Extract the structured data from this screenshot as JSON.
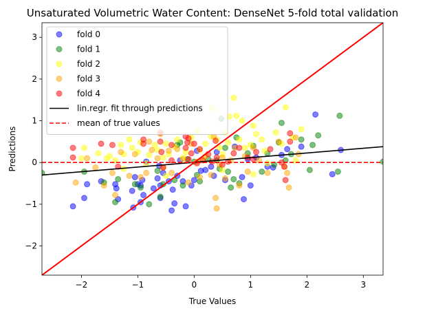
{
  "chart_data": {
    "type": "scatter",
    "title": "Unsaturated Volumetric Water Content: DenseNet 5-fold total validation",
    "xlabel": "True Values",
    "ylabel": "Predictions",
    "xlim": [
      -2.7,
      3.35
    ],
    "ylim": [
      -2.7,
      3.35
    ],
    "xticks": [
      -2,
      -1,
      0,
      1,
      2,
      3
    ],
    "yticks": [
      -2,
      -1,
      0,
      1,
      2,
      3
    ],
    "grid": false,
    "legend_position": "top-left",
    "series": [
      {
        "name": "fold 0",
        "color": "#0000ff",
        "points": [
          [
            -2.15,
            -1.05
          ],
          [
            -1.95,
            -0.85
          ],
          [
            -1.9,
            -0.52
          ],
          [
            -1.65,
            -0.45
          ],
          [
            -1.4,
            -0.52
          ],
          [
            -1.38,
            -0.62
          ],
          [
            -1.35,
            -0.88
          ],
          [
            -1.1,
            -0.68
          ],
          [
            -1.08,
            -1.08
          ],
          [
            -1.05,
            -0.35
          ],
          [
            -1.0,
            -0.52
          ],
          [
            -0.95,
            -0.55
          ],
          [
            -0.95,
            -0.95
          ],
          [
            -0.92,
            -0.42
          ],
          [
            -0.9,
            -0.78
          ],
          [
            -0.85,
            0.02
          ],
          [
            -0.72,
            -0.62
          ],
          [
            -0.65,
            -0.38
          ],
          [
            -0.62,
            -0.08
          ],
          [
            -0.6,
            -0.55
          ],
          [
            -0.6,
            -0.85
          ],
          [
            -0.55,
            -0.25
          ],
          [
            -0.45,
            -0.45
          ],
          [
            -0.4,
            -1.15
          ],
          [
            -0.38,
            -0.65
          ],
          [
            -0.35,
            -0.98
          ],
          [
            -0.3,
            -0.32
          ],
          [
            -0.2,
            -0.45
          ],
          [
            -0.15,
            -1.05
          ],
          [
            -0.05,
            -0.55
          ],
          [
            0.0,
            -0.42
          ],
          [
            0.05,
            0.28
          ],
          [
            0.12,
            -0.2
          ],
          [
            0.2,
            -0.18
          ],
          [
            0.3,
            -0.1
          ],
          [
            0.35,
            -0.32
          ],
          [
            0.55,
            -0.42
          ],
          [
            0.72,
            0.38
          ],
          [
            0.85,
            -0.35
          ],
          [
            0.88,
            -0.88
          ],
          [
            0.95,
            0.08
          ],
          [
            1.0,
            -0.55
          ],
          [
            1.3,
            -0.1
          ],
          [
            1.4,
            -0.12
          ],
          [
            1.55,
            0.18
          ],
          [
            1.65,
            0.32
          ],
          [
            1.9,
            0.38
          ],
          [
            2.15,
            1.15
          ],
          [
            2.45,
            -0.28
          ],
          [
            2.6,
            0.3
          ],
          [
            0.4,
            0.25
          ],
          [
            -0.25,
            0.05
          ],
          [
            1.1,
            0.12
          ]
        ]
      },
      {
        "name": "fold 1",
        "color": "#008000",
        "points": [
          [
            -2.7,
            -0.25
          ],
          [
            -1.95,
            -0.22
          ],
          [
            -1.6,
            -0.48
          ],
          [
            -1.4,
            -0.95
          ],
          [
            -1.35,
            -0.4
          ],
          [
            -1.05,
            -0.52
          ],
          [
            -0.95,
            -0.6
          ],
          [
            -0.8,
            -1.0
          ],
          [
            -0.65,
            -0.2
          ],
          [
            -0.6,
            -0.82
          ],
          [
            -0.55,
            -0.52
          ],
          [
            -0.35,
            -0.42
          ],
          [
            -0.3,
            0.42
          ],
          [
            -0.25,
            0.48
          ],
          [
            -0.2,
            -0.55
          ],
          [
            -0.12,
            0.08
          ],
          [
            0.0,
            0.02
          ],
          [
            0.05,
            -0.3
          ],
          [
            0.1,
            -0.45
          ],
          [
            0.25,
            0.08
          ],
          [
            0.4,
            0.05
          ],
          [
            0.45,
            -0.15
          ],
          [
            0.55,
            0.35
          ],
          [
            0.6,
            -0.22
          ],
          [
            0.65,
            -0.6
          ],
          [
            0.7,
            -0.4
          ],
          [
            0.75,
            0.6
          ],
          [
            0.8,
            -0.5
          ],
          [
            0.95,
            0.22
          ],
          [
            1.05,
            0.4
          ],
          [
            1.2,
            -0.22
          ],
          [
            1.3,
            0.22
          ],
          [
            1.42,
            -0.05
          ],
          [
            1.5,
            0.48
          ],
          [
            1.55,
            0.95
          ],
          [
            1.62,
            0.05
          ],
          [
            1.72,
            0.2
          ],
          [
            1.9,
            0.55
          ],
          [
            2.05,
            -0.18
          ],
          [
            2.1,
            0.42
          ],
          [
            2.2,
            0.65
          ],
          [
            2.55,
            -0.22
          ],
          [
            2.58,
            1.12
          ],
          [
            3.35,
            0.02
          ],
          [
            0.48,
            1.05
          ]
        ]
      },
      {
        "name": "fold 2",
        "color": "#ffff00",
        "points": [
          [
            -2.0,
            0.1
          ],
          [
            -1.95,
            0.35
          ],
          [
            -1.7,
            0.22
          ],
          [
            -1.55,
            0.1
          ],
          [
            -1.5,
            0.15
          ],
          [
            -1.4,
            0.05
          ],
          [
            -1.3,
            0.42
          ],
          [
            -1.25,
            0.2
          ],
          [
            -1.15,
            0.55
          ],
          [
            -1.1,
            0.35
          ],
          [
            -1.0,
            0.25
          ],
          [
            -0.95,
            0.48
          ],
          [
            -0.85,
            -0.02
          ],
          [
            -0.8,
            0.18
          ],
          [
            -0.7,
            0.42
          ],
          [
            -0.65,
            0.3
          ],
          [
            -0.55,
            0.12
          ],
          [
            -0.5,
            0.45
          ],
          [
            -0.45,
            0.2
          ],
          [
            -0.35,
            0.38
          ],
          [
            -0.3,
            0.55
          ],
          [
            -0.2,
            0.12
          ],
          [
            -0.15,
            0.25
          ],
          [
            -0.05,
            0.6
          ],
          [
            0.05,
            0.75
          ],
          [
            0.1,
            0.3
          ],
          [
            0.15,
            0.08
          ],
          [
            0.2,
            0.45
          ],
          [
            0.3,
            0.62
          ],
          [
            0.4,
            0.55
          ],
          [
            0.45,
            0.35
          ],
          [
            0.5,
            0.2
          ],
          [
            0.55,
            0.72
          ],
          [
            0.6,
            0.48
          ],
          [
            0.7,
            1.55
          ],
          [
            0.75,
            1.12
          ],
          [
            0.8,
            0.55
          ],
          [
            0.85,
            1.0
          ],
          [
            0.9,
            0.35
          ],
          [
            1.0,
            0.42
          ],
          [
            1.05,
            0.88
          ],
          [
            1.1,
            0.68
          ],
          [
            1.2,
            0.55
          ],
          [
            1.25,
            0.28
          ],
          [
            1.3,
            -0.02
          ],
          [
            1.45,
            0.72
          ],
          [
            1.55,
            0.45
          ],
          [
            1.62,
            1.32
          ],
          [
            1.75,
            0.6
          ],
          [
            1.8,
            0.05
          ],
          [
            1.9,
            0.8
          ],
          [
            0.32,
            1.3
          ],
          [
            0.62,
            1.1
          ],
          [
            -1.25,
            -0.15
          ],
          [
            -0.5,
            -0.32
          ],
          [
            1.05,
            -0.28
          ],
          [
            0.5,
            -0.18
          ]
        ]
      },
      {
        "name": "fold 3",
        "color": "#ffa500",
        "points": [
          [
            -2.1,
            -0.48
          ],
          [
            -1.9,
            0.1
          ],
          [
            -1.75,
            -0.12
          ],
          [
            -1.6,
            -0.55
          ],
          [
            -1.45,
            -0.25
          ],
          [
            -1.4,
            -0.78
          ],
          [
            -1.3,
            0.25
          ],
          [
            -1.15,
            -0.32
          ],
          [
            -1.05,
            0.2
          ],
          [
            -0.95,
            -0.35
          ],
          [
            -0.85,
            -0.25
          ],
          [
            -0.8,
            0.5
          ],
          [
            -0.75,
            0.3
          ],
          [
            -0.65,
            0.1
          ],
          [
            -0.55,
            -0.12
          ],
          [
            -0.45,
            0.28
          ],
          [
            -0.4,
            -0.25
          ],
          [
            -0.3,
            0.32
          ],
          [
            -0.2,
            0.08
          ],
          [
            -0.1,
            -0.48
          ],
          [
            -0.05,
            0.45
          ],
          [
            0.05,
            0.02
          ],
          [
            0.1,
            -0.35
          ],
          [
            0.2,
            0.15
          ],
          [
            0.3,
            -0.3
          ],
          [
            0.38,
            -0.85
          ],
          [
            0.4,
            -1.1
          ],
          [
            0.45,
            -0.05
          ],
          [
            0.5,
            0.12
          ],
          [
            0.55,
            -0.38
          ],
          [
            0.65,
            0.05
          ],
          [
            0.72,
            0.35
          ],
          [
            0.8,
            -0.55
          ],
          [
            0.9,
            0.15
          ],
          [
            0.95,
            -0.22
          ],
          [
            1.05,
            0.35
          ],
          [
            1.15,
            0.05
          ],
          [
            1.3,
            -0.25
          ],
          [
            1.5,
            0.5
          ],
          [
            1.6,
            -0.1
          ],
          [
            1.65,
            -0.25
          ],
          [
            1.68,
            -0.6
          ],
          [
            1.8,
            0.6
          ],
          [
            1.85,
            0.2
          ],
          [
            0.35,
            0.62
          ],
          [
            -0.6,
            0.68
          ]
        ]
      },
      {
        "name": "fold 4",
        "color": "#ff0000",
        "points": [
          [
            -2.15,
            0.35
          ],
          [
            -2.15,
            0.12
          ],
          [
            -1.65,
            0.45
          ],
          [
            -1.45,
            0.42
          ],
          [
            -1.35,
            -0.1
          ],
          [
            -0.9,
            0.55
          ],
          [
            -0.9,
            0.45
          ],
          [
            -0.6,
            0.72
          ],
          [
            -0.6,
            0.5
          ],
          [
            -0.58,
            0.25
          ],
          [
            -0.4,
            0.42
          ],
          [
            -0.4,
            0.05
          ],
          [
            -0.15,
            0.62
          ],
          [
            -0.15,
            0.35
          ],
          [
            -0.12,
            0.48
          ],
          [
            -0.1,
            0.08
          ],
          [
            -0.1,
            0.58
          ],
          [
            -0.05,
            0.22
          ],
          [
            0.0,
            0.45
          ],
          [
            0.05,
            -0.02
          ],
          [
            0.1,
            0.32
          ],
          [
            0.15,
            0.05
          ],
          [
            0.25,
            0.2
          ],
          [
            0.38,
            0.52
          ],
          [
            0.4,
            0.12
          ],
          [
            0.5,
            -0.05
          ],
          [
            0.6,
            0.02
          ],
          [
            0.7,
            0.22
          ],
          [
            0.8,
            0.35
          ],
          [
            0.95,
            0.12
          ],
          [
            1.05,
            0.08
          ],
          [
            1.1,
            0.25
          ],
          [
            1.35,
            0.32
          ],
          [
            1.55,
            0.0
          ],
          [
            1.6,
            -0.1
          ],
          [
            1.62,
            -0.42
          ],
          [
            1.7,
            0.7
          ],
          [
            1.7,
            0.5
          ],
          [
            -0.55,
            -0.12
          ],
          [
            0.32,
            0.02
          ]
        ]
      }
    ],
    "lines": [
      {
        "name": "lin.regr. fit through predictions",
        "color": "#000000",
        "style": "solid",
        "x": [
          -2.7,
          3.35
        ],
        "y": [
          -0.3,
          0.38
        ]
      },
      {
        "name": "mean of true values",
        "color": "#ff0000",
        "style": "dashed",
        "x": [
          -2.7,
          3.35
        ],
        "y": [
          0.0,
          0.0
        ]
      },
      {
        "name": "",
        "color": "#ff0000",
        "style": "solid",
        "x": [
          -2.7,
          3.35
        ],
        "y": [
          -2.7,
          3.35
        ]
      }
    ]
  }
}
